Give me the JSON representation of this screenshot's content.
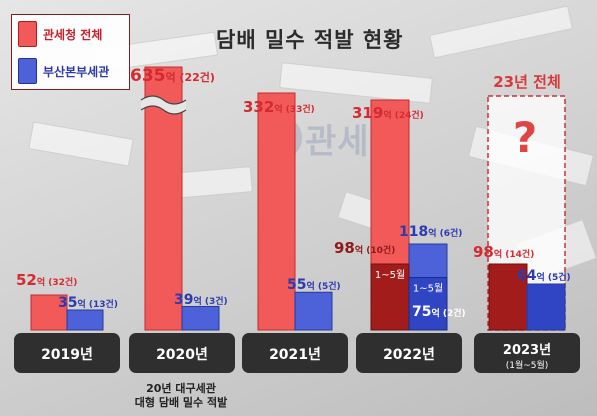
{
  "title": "담배 밀수 적발 현황",
  "legend": {
    "customs_total": "관세청 전체",
    "busan_office": "부산본부세관"
  },
  "watermark": "관세청",
  "colors": {
    "customs_total": "#f25a5a",
    "busan_office": "#4d62d9",
    "customs_total_partial": "#a31c1c",
    "busan_office_partial": "#2f45c4"
  },
  "chart_data": {
    "type": "bar",
    "unit": "억",
    "categories": [
      "2019년",
      "2020년",
      "2021년",
      "2022년",
      "2023년"
    ],
    "category_sublabels": [
      "",
      "",
      "",
      "",
      "(1월~5월)"
    ],
    "series": [
      {
        "name": "관세청 전체",
        "values": [
          52,
          635,
          332,
          319,
          98
        ],
        "labels": [
          "52억 (32건)",
          "635억 (22건)",
          "332억 (33건)",
          "319억 (24건)",
          "98억 (14건)"
        ]
      },
      {
        "name": "부산본부세관",
        "values": [
          35,
          39,
          55,
          118,
          64
        ],
        "labels": [
          "35억 (13건)",
          "39억 (3건)",
          "55억 (5건)",
          "118억 (6건)",
          "64억 (5건)"
        ]
      }
    ],
    "partial_2022": {
      "period": "1~5월",
      "customs_total": {
        "value": 98,
        "label": "98억 (10건)"
      },
      "busan_office": {
        "value": 75,
        "label": "75억 (2건)"
      }
    },
    "year_2023_total": {
      "label": "23년 전체",
      "value": "?"
    },
    "axis_break_category": "2020년",
    "annotation": [
      "20년 대구세관",
      "대형 담배 밀수 적발"
    ],
    "grid": false,
    "legend_position": "top-left"
  }
}
